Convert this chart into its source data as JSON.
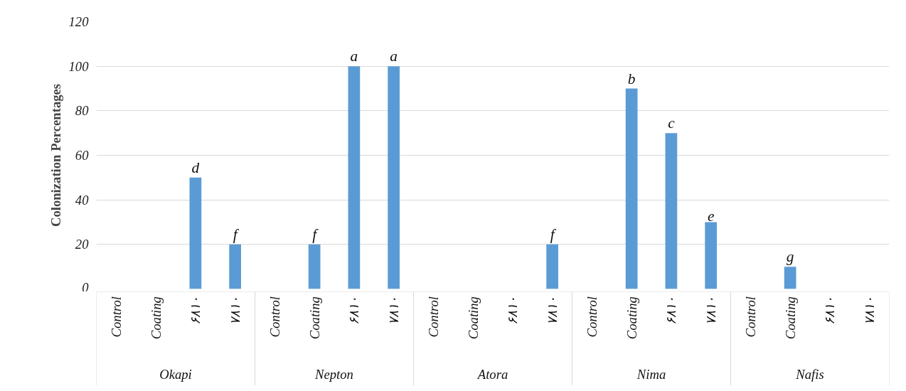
{
  "chart_data": {
    "type": "bar",
    "ylabel": "Colonization Percentages",
    "categories": [
      "Control",
      "Coating",
      "۶۸۱۰",
      "۷۸۱۰",
      "Control",
      "Coating",
      "۶۸۱۰",
      "۷۸۱۰",
      "Control",
      "Coating",
      "۶۸۱۰",
      "۷۸۱۰",
      "Control",
      "Coating",
      "۶۸۱۰",
      "۷۸۱۰",
      "Control",
      "Coating",
      "۶۸۱۰",
      "۷۸۱۰"
    ],
    "values": [
      0,
      0,
      50,
      20,
      0,
      20,
      100,
      100,
      0,
      0,
      0,
      20,
      0,
      90,
      70,
      30,
      0,
      10,
      0,
      0
    ],
    "value_labels": [
      null,
      null,
      "d",
      "f",
      null,
      "f",
      "a",
      "a",
      null,
      null,
      null,
      "f",
      null,
      "b",
      "c",
      "e",
      null,
      "g",
      null,
      null
    ],
    "color": "#5b9bd5",
    "annotations": [
      "Okapi",
      "Nepton",
      "Atora",
      "Nima",
      "Nafis"
    ],
    "ylim": [
      0,
      120
    ],
    "yticks": [
      0,
      20,
      40,
      60,
      80,
      100,
      120
    ],
    "grid": "y"
  }
}
